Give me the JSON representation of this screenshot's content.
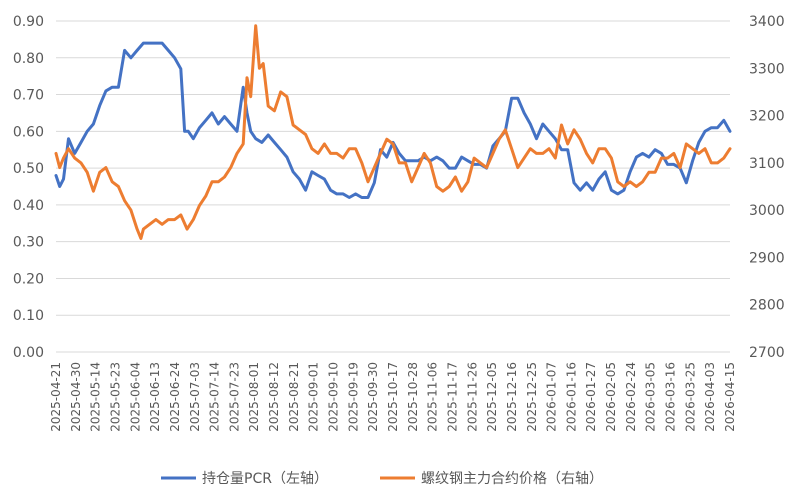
{
  "chart_data": {
    "type": "line",
    "title": "",
    "xlabel": "",
    "y_left_label": "",
    "y_right_label": "",
    "grid": true,
    "legend_position": "bottom",
    "y_left_range": [
      0,
      0.9
    ],
    "y_left_ticks": [
      "0.00",
      "0.10",
      "0.20",
      "0.30",
      "0.40",
      "0.50",
      "0.60",
      "0.70",
      "0.80",
      "0.90"
    ],
    "y_right_range": [
      2700,
      3400
    ],
    "y_right_ticks": [
      "2700",
      "2800",
      "2900",
      "3000",
      "3100",
      "3200",
      "3300",
      "3400"
    ],
    "x_tick_labels": [
      "2025-04-21",
      "2025-04-30",
      "2025-05-14",
      "2025-05-23",
      "2025-06-04",
      "2025-06-13",
      "2025-06-24",
      "2025-07-03",
      "2025-07-14",
      "2025-07-23",
      "2025-08-01",
      "2025-08-12",
      "2025-08-21",
      "2025-09-01",
      "2025-09-10",
      "2025-09-19",
      "2025-09-30",
      "2025-10-17",
      "2025-10-28",
      "2025-11-06",
      "2025-11-17",
      "2025-11-26",
      "2025-12-05",
      "2025-12-16",
      "2025-12-25",
      "2026-01-07",
      "2026-01-16",
      "2026-01-27",
      "2026-02-05",
      "2026-02-24",
      "2026-03-05",
      "2026-03-16",
      "2026-03-25",
      "2026-04-03",
      "2026-04-15"
    ],
    "series": [
      {
        "name": "持仓量PCR（左轴）",
        "axis": "left",
        "color": "#4472C4",
        "points": [
          [
            0,
            0.48
          ],
          [
            0.3,
            0.45
          ],
          [
            0.6,
            0.47
          ],
          [
            1,
            0.58
          ],
          [
            1.5,
            0.54
          ],
          [
            2,
            0.57
          ],
          [
            2.5,
            0.6
          ],
          [
            3,
            0.62
          ],
          [
            3.5,
            0.67
          ],
          [
            4,
            0.71
          ],
          [
            4.5,
            0.72
          ],
          [
            5,
            0.72
          ],
          [
            5.5,
            0.82
          ],
          [
            6,
            0.8
          ],
          [
            6.5,
            0.82
          ],
          [
            7,
            0.84
          ],
          [
            7.5,
            0.84
          ],
          [
            8,
            0.84
          ],
          [
            8.5,
            0.84
          ],
          [
            9,
            0.82
          ],
          [
            9.5,
            0.8
          ],
          [
            10,
            0.77
          ],
          [
            10.3,
            0.6
          ],
          [
            10.6,
            0.6
          ],
          [
            11,
            0.58
          ],
          [
            11.5,
            0.61
          ],
          [
            12,
            0.63
          ],
          [
            12.5,
            0.65
          ],
          [
            13,
            0.62
          ],
          [
            13.5,
            0.64
          ],
          [
            14,
            0.62
          ],
          [
            14.5,
            0.6
          ],
          [
            15,
            0.72
          ],
          [
            15.3,
            0.65
          ],
          [
            15.6,
            0.6
          ],
          [
            16,
            0.58
          ],
          [
            16.5,
            0.57
          ],
          [
            17,
            0.59
          ],
          [
            17.5,
            0.57
          ],
          [
            18,
            0.55
          ],
          [
            18.5,
            0.53
          ],
          [
            19,
            0.49
          ],
          [
            19.5,
            0.47
          ],
          [
            20,
            0.44
          ],
          [
            20.5,
            0.49
          ],
          [
            21,
            0.48
          ],
          [
            21.5,
            0.47
          ],
          [
            22,
            0.44
          ],
          [
            22.5,
            0.43
          ],
          [
            23,
            0.43
          ],
          [
            23.5,
            0.42
          ],
          [
            24,
            0.43
          ],
          [
            24.5,
            0.42
          ],
          [
            25,
            0.42
          ],
          [
            25.5,
            0.46
          ],
          [
            26,
            0.55
          ],
          [
            26.5,
            0.53
          ],
          [
            27,
            0.57
          ],
          [
            27.5,
            0.54
          ],
          [
            28,
            0.52
          ],
          [
            28.5,
            0.52
          ],
          [
            29,
            0.52
          ],
          [
            29.5,
            0.53
          ],
          [
            30,
            0.52
          ],
          [
            30.5,
            0.53
          ],
          [
            31,
            0.52
          ],
          [
            31.5,
            0.5
          ],
          [
            32,
            0.5
          ],
          [
            32.5,
            0.53
          ],
          [
            33,
            0.52
          ],
          [
            33.5,
            0.51
          ],
          [
            34,
            0.51
          ],
          [
            34.5,
            0.5
          ],
          [
            35,
            0.56
          ],
          [
            35.5,
            0.58
          ],
          [
            36,
            0.6
          ],
          [
            36.5,
            0.69
          ],
          [
            37,
            0.69
          ],
          [
            37.5,
            0.65
          ],
          [
            38,
            0.62
          ],
          [
            38.5,
            0.58
          ],
          [
            39,
            0.62
          ],
          [
            39.5,
            0.6
          ],
          [
            40,
            0.58
          ],
          [
            40.5,
            0.55
          ],
          [
            41,
            0.55
          ],
          [
            41.5,
            0.46
          ],
          [
            42,
            0.44
          ],
          [
            42.5,
            0.46
          ],
          [
            43,
            0.44
          ],
          [
            43.5,
            0.47
          ],
          [
            44,
            0.49
          ],
          [
            44.5,
            0.44
          ],
          [
            45,
            0.43
          ],
          [
            45.5,
            0.44
          ],
          [
            46,
            0.49
          ],
          [
            46.5,
            0.53
          ],
          [
            47,
            0.54
          ],
          [
            47.5,
            0.53
          ],
          [
            48,
            0.55
          ],
          [
            48.5,
            0.54
          ],
          [
            49,
            0.51
          ],
          [
            49.5,
            0.51
          ],
          [
            50,
            0.5
          ],
          [
            50.5,
            0.46
          ],
          [
            51,
            0.52
          ],
          [
            51.5,
            0.57
          ],
          [
            52,
            0.6
          ],
          [
            52.5,
            0.61
          ],
          [
            53,
            0.61
          ],
          [
            53.5,
            0.63
          ],
          [
            54,
            0.6
          ]
        ]
      },
      {
        "name": "螺纹钢主力合约价格（右轴）",
        "axis": "right",
        "color": "#ED7D31",
        "points": [
          [
            0,
            3120
          ],
          [
            0.3,
            3090
          ],
          [
            0.6,
            3110
          ],
          [
            1,
            3130
          ],
          [
            1.5,
            3110
          ],
          [
            2,
            3100
          ],
          [
            2.5,
            3080
          ],
          [
            3,
            3040
          ],
          [
            3.5,
            3080
          ],
          [
            4,
            3090
          ],
          [
            4.5,
            3060
          ],
          [
            5,
            3050
          ],
          [
            5.5,
            3020
          ],
          [
            6,
            3000
          ],
          [
            6.5,
            2960
          ],
          [
            6.8,
            2940
          ],
          [
            7,
            2960
          ],
          [
            7.5,
            2970
          ],
          [
            8,
            2980
          ],
          [
            8.5,
            2970
          ],
          [
            9,
            2980
          ],
          [
            9.5,
            2980
          ],
          [
            10,
            2990
          ],
          [
            10.5,
            2960
          ],
          [
            11,
            2980
          ],
          [
            11.5,
            3010
          ],
          [
            12,
            3030
          ],
          [
            12.5,
            3060
          ],
          [
            13,
            3060
          ],
          [
            13.5,
            3070
          ],
          [
            14,
            3090
          ],
          [
            14.5,
            3120
          ],
          [
            15,
            3140
          ],
          [
            15.3,
            3280
          ],
          [
            15.6,
            3240
          ],
          [
            16,
            3390
          ],
          [
            16.3,
            3300
          ],
          [
            16.6,
            3310
          ],
          [
            17,
            3220
          ],
          [
            17.5,
            3210
          ],
          [
            18,
            3250
          ],
          [
            18.5,
            3240
          ],
          [
            19,
            3180
          ],
          [
            19.5,
            3170
          ],
          [
            20,
            3160
          ],
          [
            20.5,
            3130
          ],
          [
            21,
            3120
          ],
          [
            21.5,
            3140
          ],
          [
            22,
            3120
          ],
          [
            22.5,
            3120
          ],
          [
            23,
            3110
          ],
          [
            23.5,
            3130
          ],
          [
            24,
            3130
          ],
          [
            24.5,
            3100
          ],
          [
            25,
            3060
          ],
          [
            25.5,
            3090
          ],
          [
            26,
            3120
          ],
          [
            26.5,
            3150
          ],
          [
            27,
            3140
          ],
          [
            27.5,
            3100
          ],
          [
            28,
            3100
          ],
          [
            28.5,
            3060
          ],
          [
            29,
            3090
          ],
          [
            29.5,
            3120
          ],
          [
            30,
            3100
          ],
          [
            30.5,
            3050
          ],
          [
            31,
            3040
          ],
          [
            31.5,
            3050
          ],
          [
            32,
            3070
          ],
          [
            32.5,
            3040
          ],
          [
            33,
            3060
          ],
          [
            33.5,
            3110
          ],
          [
            34,
            3100
          ],
          [
            34.5,
            3090
          ],
          [
            35,
            3120
          ],
          [
            35.5,
            3150
          ],
          [
            36,
            3170
          ],
          [
            36.5,
            3130
          ],
          [
            37,
            3090
          ],
          [
            37.5,
            3110
          ],
          [
            38,
            3130
          ],
          [
            38.5,
            3120
          ],
          [
            39,
            3120
          ],
          [
            39.5,
            3130
          ],
          [
            40,
            3110
          ],
          [
            40.5,
            3180
          ],
          [
            41,
            3140
          ],
          [
            41.5,
            3170
          ],
          [
            42,
            3150
          ],
          [
            42.5,
            3120
          ],
          [
            43,
            3100
          ],
          [
            43.5,
            3130
          ],
          [
            44,
            3130
          ],
          [
            44.5,
            3110
          ],
          [
            45,
            3060
          ],
          [
            45.5,
            3050
          ],
          [
            46,
            3060
          ],
          [
            46.5,
            3050
          ],
          [
            47,
            3060
          ],
          [
            47.5,
            3080
          ],
          [
            48,
            3080
          ],
          [
            48.5,
            3110
          ],
          [
            49,
            3110
          ],
          [
            49.5,
            3120
          ],
          [
            50,
            3090
          ],
          [
            50.5,
            3140
          ],
          [
            51,
            3130
          ],
          [
            51.5,
            3120
          ],
          [
            52,
            3130
          ],
          [
            52.5,
            3100
          ],
          [
            53,
            3100
          ],
          [
            53.5,
            3110
          ],
          [
            54,
            3130
          ]
        ]
      }
    ]
  }
}
